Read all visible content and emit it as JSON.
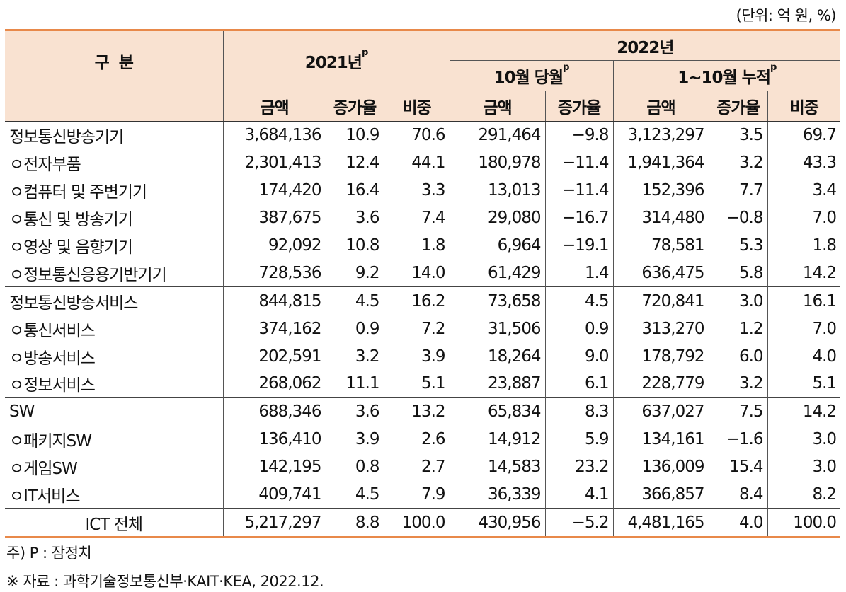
{
  "unit_note": "(단위: 억 원, %)",
  "header": {
    "category": "구  분",
    "year2021": "2021년",
    "year2022": "2022년",
    "month_current": "10월 당월",
    "cumulative": "1~10월 누적",
    "p_mark": "p",
    "col_amount": "금액",
    "col_growth": "증가율",
    "col_share": "비중"
  },
  "rows": [
    {
      "label": "정보통신방송기기",
      "a21": "3,684,136",
      "g21": "10.9",
      "s21": "70.6",
      "aM": "291,464",
      "gM": "−9.8",
      "aC": "3,123,297",
      "gC": "3.5",
      "sC": "69.7"
    },
    {
      "label": "ㅇ전자부품",
      "a21": "2,301,413",
      "g21": "12.4",
      "s21": "44.1",
      "aM": "180,978",
      "gM": "−11.4",
      "aC": "1,941,364",
      "gC": "3.2",
      "sC": "43.3"
    },
    {
      "label": "ㅇ컴퓨터 및 주변기기",
      "a21": "174,420",
      "g21": "16.4",
      "s21": "3.3",
      "aM": "13,013",
      "gM": "−11.4",
      "aC": "152,396",
      "gC": "7.7",
      "sC": "3.4"
    },
    {
      "label": "ㅇ통신 및 방송기기",
      "a21": "387,675",
      "g21": "3.6",
      "s21": "7.4",
      "aM": "29,080",
      "gM": "−16.7",
      "aC": "314,480",
      "gC": "−0.8",
      "sC": "7.0"
    },
    {
      "label": "ㅇ영상 및 음향기기",
      "a21": "92,092",
      "g21": "10.8",
      "s21": "1.8",
      "aM": "6,964",
      "gM": "−19.1",
      "aC": "78,581",
      "gC": "5.3",
      "sC": "1.8"
    },
    {
      "label": "ㅇ정보통신응용기반기기",
      "a21": "728,536",
      "g21": "9.2",
      "s21": "14.0",
      "aM": "61,429",
      "gM": "1.4",
      "aC": "636,475",
      "gC": "5.8",
      "sC": "14.2"
    },
    {
      "label": "정보통신방송서비스",
      "a21": "844,815",
      "g21": "4.5",
      "s21": "16.2",
      "aM": "73,658",
      "gM": "4.5",
      "aC": "720,841",
      "gC": "3.0",
      "sC": "16.1"
    },
    {
      "label": "ㅇ통신서비스",
      "a21": "374,162",
      "g21": "0.9",
      "s21": "7.2",
      "aM": "31,506",
      "gM": "0.9",
      "aC": "313,270",
      "gC": "1.2",
      "sC": "7.0"
    },
    {
      "label": "ㅇ방송서비스",
      "a21": "202,591",
      "g21": "3.2",
      "s21": "3.9",
      "aM": "18,264",
      "gM": "9.0",
      "aC": "178,792",
      "gC": "6.0",
      "sC": "4.0"
    },
    {
      "label": "ㅇ정보서비스",
      "a21": "268,062",
      "g21": "11.1",
      "s21": "5.1",
      "aM": "23,887",
      "gM": "6.1",
      "aC": "228,779",
      "gC": "3.2",
      "sC": "5.1"
    },
    {
      "label": "SW",
      "a21": "688,346",
      "g21": "3.6",
      "s21": "13.2",
      "aM": "65,834",
      "gM": "8.3",
      "aC": "637,027",
      "gC": "7.5",
      "sC": "14.2"
    },
    {
      "label": "ㅇ패키지SW",
      "a21": "136,410",
      "g21": "3.9",
      "s21": "2.6",
      "aM": "14,912",
      "gM": "5.9",
      "aC": "134,161",
      "gC": "−1.6",
      "sC": "3.0"
    },
    {
      "label": "ㅇ게임SW",
      "a21": "142,195",
      "g21": "0.8",
      "s21": "2.7",
      "aM": "14,583",
      "gM": "23.2",
      "aC": "136,009",
      "gC": "15.4",
      "sC": "3.0"
    },
    {
      "label": "ㅇIT서비스",
      "a21": "409,741",
      "g21": "4.5",
      "s21": "7.9",
      "aM": "36,339",
      "gM": "4.1",
      "aC": "366,857",
      "gC": "8.4",
      "sC": "8.2"
    },
    {
      "label": "ICT 전체",
      "a21": "5,217,297",
      "g21": "8.8",
      "s21": "100.0",
      "aM": "430,956",
      "gM": "−5.2",
      "aC": "4,481,165",
      "gC": "4.0",
      "sC": "100.0"
    }
  ],
  "notes": {
    "p_note": "주) P : 잠정치",
    "source": "※ 자료 : 과학기술정보통신부·KAIT·KEA, 2022.12."
  }
}
